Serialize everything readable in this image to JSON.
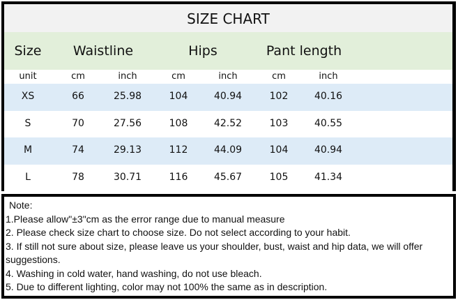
{
  "title": "SIZE CHART",
  "headers": {
    "size": "Size",
    "waist": "Waistline",
    "hips": "Hips",
    "pant": "Pant length"
  },
  "units": [
    "unit",
    "cm",
    "inch",
    "cm",
    "inch",
    "cm",
    "inch"
  ],
  "rows": [
    [
      "XS",
      "66",
      "25.98",
      "104",
      "40.94",
      "102",
      "40.16"
    ],
    [
      "S",
      "70",
      "27.56",
      "108",
      "42.52",
      "103",
      "40.55"
    ],
    [
      "M",
      "74",
      "29.13",
      "112",
      "44.09",
      "104",
      "40.94"
    ],
    [
      "L",
      "78",
      "30.71",
      "116",
      "45.67",
      "105",
      "41.34"
    ]
  ],
  "colors": {
    "title_bg": "#f2f2f2",
    "header_bg": "#e2efda",
    "stripe_bg": "#ddebf7"
  },
  "notes": {
    "heading": "Note:",
    "items": [
      "1.Please allow\"±3\"cm as the error range due to manual measure",
      "2. Please check size chart to choose size. Do not select according to your habit.",
      "3. If still not sure about size, please leave us your shoulder, bust, waist and hip data, we will offer suggestions.",
      "4. Washing in cold water, hand washing, do not use bleach.",
      "5. Due to different lighting, color may not 100% the same as in description."
    ]
  }
}
